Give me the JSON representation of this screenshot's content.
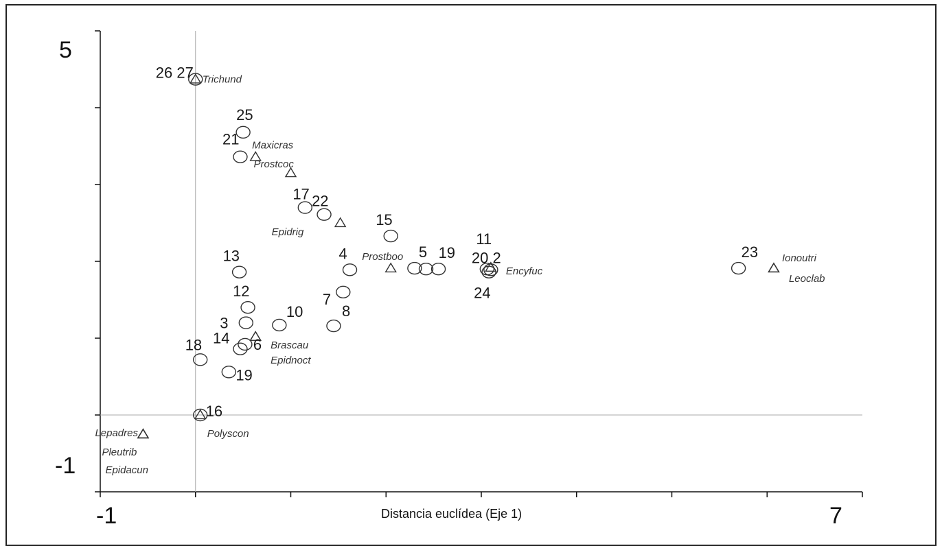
{
  "chart_data": {
    "type": "scatter",
    "title": "",
    "xlabel": "Distancia euclídea (Eje 1)",
    "ylabel": "",
    "xlim": [
      -1,
      7
    ],
    "ylim": [
      -1,
      5
    ],
    "x_tick_labels": [
      "-1",
      "7"
    ],
    "y_tick_labels": [
      "5",
      "-1"
    ],
    "grid": false,
    "reference_lines": {
      "x": 0,
      "y": 0
    },
    "series": [
      {
        "marker": "circle",
        "points": [
          {
            "label": "26 27",
            "x": 0.0,
            "y": 4.37
          },
          {
            "label": "25",
            "x": 0.5,
            "y": 3.68
          },
          {
            "label": "21",
            "x": 0.47,
            "y": 3.36
          },
          {
            "label": "17",
            "x": 1.15,
            "y": 2.7
          },
          {
            "label": "22",
            "x": 1.35,
            "y": 2.61
          },
          {
            "label": "15",
            "x": 2.05,
            "y": 2.33
          },
          {
            "label": "13",
            "x": 0.46,
            "y": 1.86
          },
          {
            "label": "4",
            "x": 1.62,
            "y": 1.89
          },
          {
            "label": "7",
            "x": 1.55,
            "y": 1.6
          },
          {
            "label": "12",
            "x": 0.55,
            "y": 1.4
          },
          {
            "label": "3",
            "x": 0.53,
            "y": 1.2
          },
          {
            "label": "10",
            "x": 0.88,
            "y": 1.17
          },
          {
            "label": "8",
            "x": 1.45,
            "y": 1.16
          },
          {
            "label": "6",
            "x": 0.52,
            "y": 0.92
          },
          {
            "label": "14",
            "x": 0.47,
            "y": 0.86
          },
          {
            "label": "18",
            "x": 0.05,
            "y": 0.72
          },
          {
            "label": "19",
            "x": 0.35,
            "y": 0.56
          },
          {
            "label": "16",
            "x": 0.05,
            "y": 0.0
          },
          {
            "label": "5",
            "x": 2.3,
            "y": 1.91
          },
          {
            "label": "",
            "x": 2.42,
            "y": 1.9
          },
          {
            "label": "19",
            "x": 2.55,
            "y": 1.9
          },
          {
            "label": "11",
            "x": 3.06,
            "y": 1.9
          },
          {
            "label": "20 2",
            "x": 3.1,
            "y": 1.89
          },
          {
            "label": "24",
            "x": 3.08,
            "y": 1.86
          },
          {
            "label": "23",
            "x": 5.7,
            "y": 1.91
          }
        ]
      },
      {
        "marker": "triangle",
        "points": [
          {
            "label": "Trichund",
            "x": 0.0,
            "y": 4.37
          },
          {
            "label": "Maxicras",
            "x": 0.63,
            "y": 3.36
          },
          {
            "label": "Prostcoc",
            "x": 1.0,
            "y": 3.15
          },
          {
            "label": "Epidrig",
            "x": 1.52,
            "y": 2.5
          },
          {
            "label": "Prostboo",
            "x": 2.05,
            "y": 1.91
          },
          {
            "label": "Encyfuc",
            "x": 3.1,
            "y": 1.92
          },
          {
            "label": "Ionoutri",
            "x": 6.07,
            "y": 1.91
          },
          {
            "label": "Leoclab",
            "x": 6.07,
            "y": 1.91
          },
          {
            "label": "Brascau",
            "x": 0.63,
            "y": 1.02
          },
          {
            "label": "Epidnoct",
            "x": 0.63,
            "y": 1.02
          },
          {
            "label": "Polyscon",
            "x": 0.05,
            "y": 0.0
          },
          {
            "label": "Lepadres",
            "x": -0.55,
            "y": -0.25
          },
          {
            "label": "Pleutrib",
            "x": -0.55,
            "y": -0.25
          },
          {
            "label": "Epidacun",
            "x": -0.55,
            "y": -0.25
          }
        ]
      }
    ]
  }
}
